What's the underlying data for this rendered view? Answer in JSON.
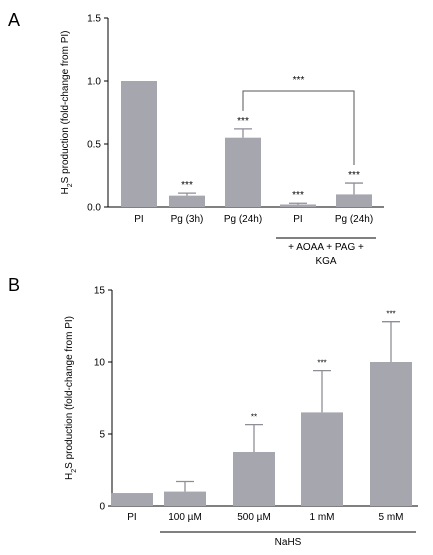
{
  "chart_data": [
    {
      "type": "bar",
      "panel_label": "A",
      "categories": [
        "PI",
        "Pg (3h)",
        "Pg (24h)",
        "PI",
        "Pg (24h)"
      ],
      "values": [
        1.0,
        0.09,
        0.55,
        0.02,
        0.1
      ],
      "errors": [
        0.0,
        0.02,
        0.07,
        0.01,
        0.09
      ],
      "significance": [
        "",
        "***",
        "***",
        "***",
        "***"
      ],
      "ylabel_parts": {
        "pre": "H",
        "sub": "2",
        "post": "S production (fold-change from PI)"
      },
      "ylim": [
        0,
        1.5
      ],
      "yticks": [
        "0.0",
        "0.5",
        "1.0",
        "1.5"
      ],
      "ytick_values": [
        0,
        0.5,
        1.0,
        1.5
      ],
      "comparison": {
        "from_index": 2,
        "to_index": 4,
        "label": "***"
      },
      "group_label": {
        "from_index": 3,
        "to_index": 4,
        "lines": [
          "+ AOAA + PAG +",
          "KGA"
        ]
      }
    },
    {
      "type": "bar",
      "panel_label": "B",
      "categories": [
        "PI",
        "100 µM",
        "500 µM",
        "1 mM",
        "5 mM"
      ],
      "values": [
        0.9,
        1.0,
        3.75,
        6.5,
        10.0
      ],
      "errors": [
        0.0,
        0.7,
        1.9,
        2.9,
        2.8
      ],
      "significance": [
        "",
        "",
        "**",
        "***",
        "***"
      ],
      "ylabel_parts": {
        "pre": "H",
        "sub": "2",
        "post": "S production (fold-change from PI)"
      },
      "ylim": [
        0,
        15
      ],
      "yticks": [
        "0",
        "5",
        "10",
        "15"
      ],
      "ytick_values": [
        0,
        5,
        10,
        15
      ],
      "group_label": {
        "from_index": 1,
        "to_index": 4,
        "lines": [
          "NaHS"
        ]
      }
    }
  ]
}
